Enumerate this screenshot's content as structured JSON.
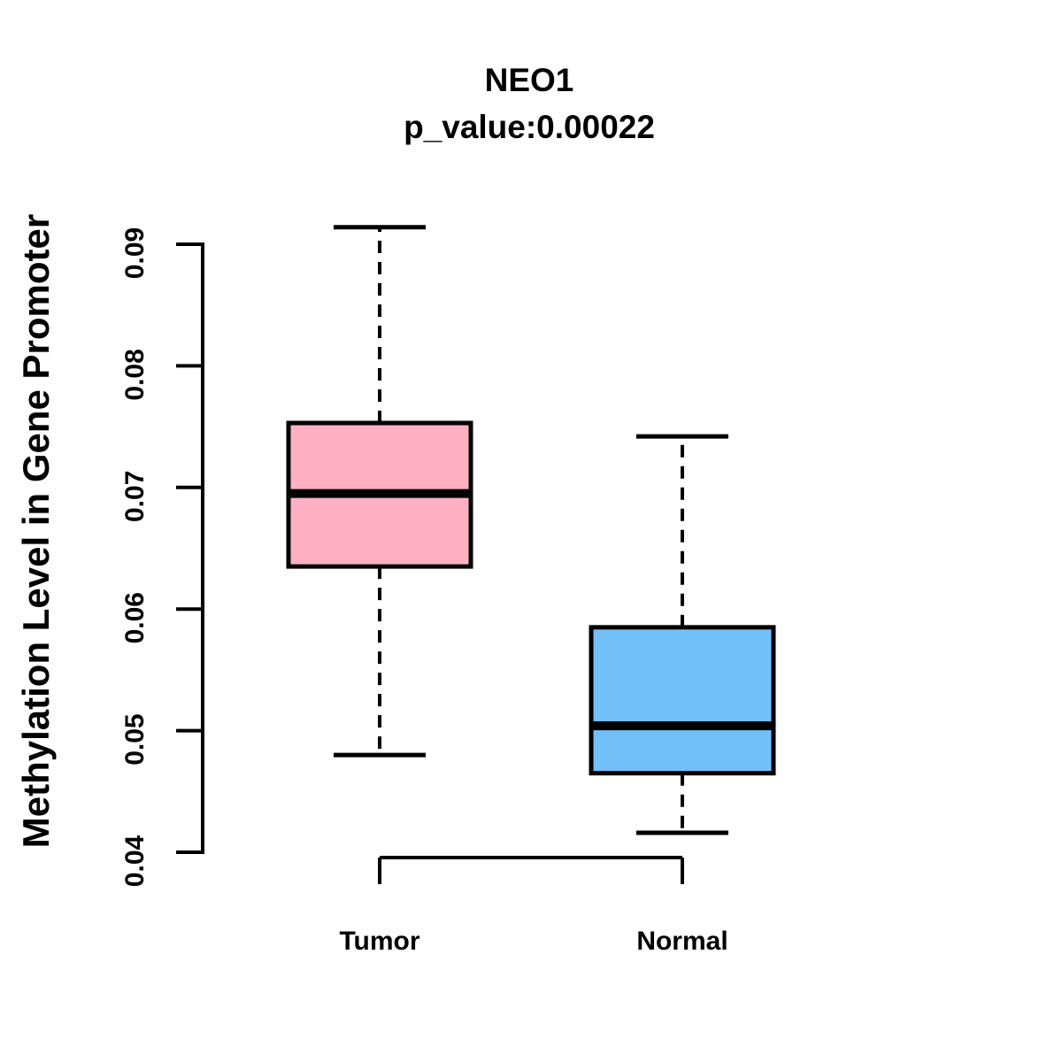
{
  "figure": {
    "title": "NEO1",
    "subtitle": "p_value:0.00022",
    "ylabel": "Methylation Level in Gene Promoter"
  },
  "colors": {
    "background": "#FFFFFF",
    "line": "#000000",
    "tumor_fill": "#FFB1C3",
    "normal_fill": "#73BFF8"
  },
  "chart_data": {
    "type": "boxplot",
    "title": "NEO1",
    "subtitle": "p_value:0.00022",
    "xlabel": "",
    "ylabel": "Methylation Level in Gene Promoter",
    "ylim": [
      0.0395,
      0.0935
    ],
    "yticks": [
      "0.04",
      "0.05",
      "0.06",
      "0.07",
      "0.08",
      "0.09"
    ],
    "grid": false,
    "legend": "none",
    "groups": [
      {
        "label": "Tumor",
        "color": "#FFB1C3",
        "whisker_low": 0.048,
        "q1": 0.0635,
        "median": 0.0695,
        "q3": 0.0753,
        "whisker_high": 0.0914
      },
      {
        "label": "Normal",
        "color": "#73BFF8",
        "whisker_low": 0.0416,
        "q1": 0.0465,
        "median": 0.0504,
        "q3": 0.0585,
        "whisker_high": 0.0742
      }
    ]
  }
}
